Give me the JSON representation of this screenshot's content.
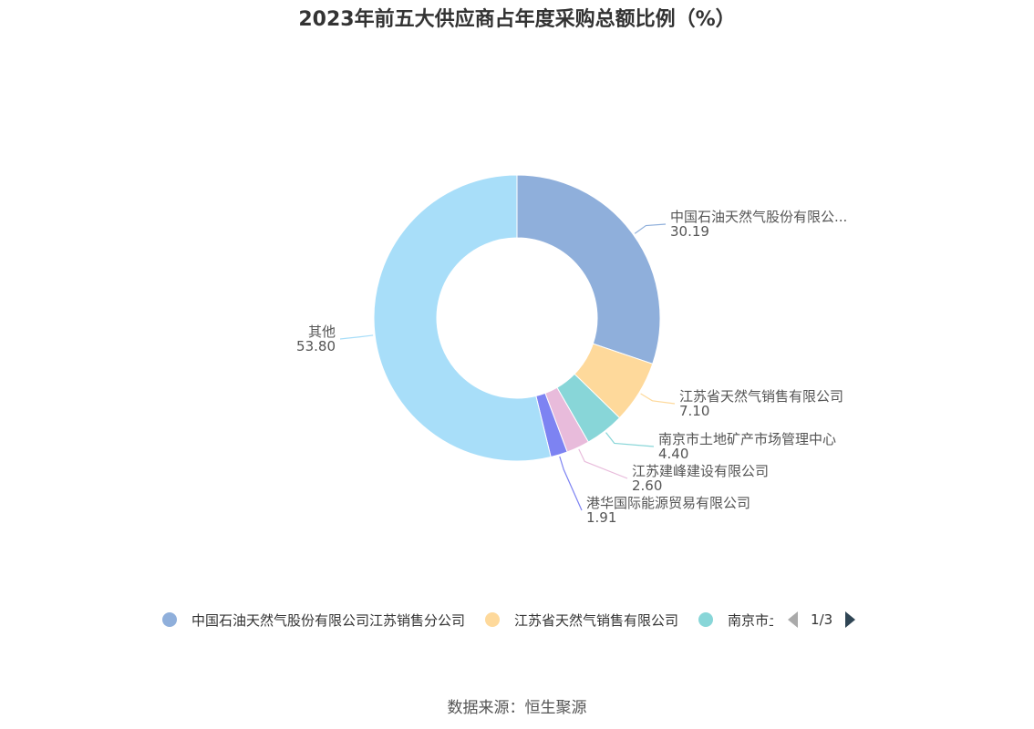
{
  "title": "2023年前五大供应商占年度采购总额比例（%）",
  "source": "数据来源：恒生聚源",
  "chart_data": {
    "type": "pie",
    "donut": true,
    "title": "2023年前五大供应商占年度采购总额比例（%）",
    "slices": [
      {
        "name": "中国石油天然气股份有限公司江苏销售分公司",
        "label": "中国石油天然气股份有限公...",
        "value": 30.19,
        "value_label": "30.19",
        "color": "#8fafdb"
      },
      {
        "name": "江苏省天然气销售有限公司",
        "label": "江苏省天然气销售有限公司",
        "value": 7.1,
        "value_label": "7.10",
        "color": "#fed99b"
      },
      {
        "name": "南京市土地矿产市场管理中心",
        "label": "南京市土地矿产市场管理中心",
        "value": 4.4,
        "value_label": "4.40",
        "color": "#88d6d8"
      },
      {
        "name": "江苏建峰建设有限公司",
        "label": "江苏建峰建设有限公司",
        "value": 2.6,
        "value_label": "2.60",
        "color": "#e8bbdb"
      },
      {
        "name": "港华国际能源贸易有限公司",
        "label": "港华国际能源贸易有限公司",
        "value": 1.91,
        "value_label": "1.91",
        "color": "#7d83f2"
      },
      {
        "name": "其他",
        "label": "其他",
        "value": 53.8,
        "value_label": "53.80",
        "color": "#a8def9"
      }
    ]
  },
  "legend": {
    "items": [
      {
        "label": "中国石油天然气股份有限公司江苏销售分公司",
        "color": "#8fafdb"
      },
      {
        "label": "江苏省天然气销售有限公司",
        "color": "#fed99b"
      },
      {
        "label": "南京市土地矿产市场管理中心",
        "color": "#88d6d8"
      }
    ],
    "page": "1/3"
  }
}
